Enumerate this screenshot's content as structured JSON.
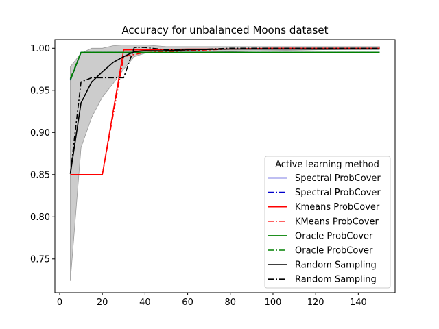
{
  "chart_data": {
    "type": "line",
    "title": "Accuracy for unbalanced Moons dataset",
    "xlabel": "",
    "ylabel": "",
    "xlim": [
      -2.25,
      157.25
    ],
    "ylim": [
      0.71,
      1.01
    ],
    "xticks": [
      0,
      20,
      40,
      60,
      80,
      100,
      120,
      140
    ],
    "yticks": [
      0.75,
      0.8,
      0.85,
      0.9,
      0.95,
      1.0
    ],
    "ytick_labels": [
      "0.75",
      "0.80",
      "0.85",
      "0.90",
      "0.95",
      "1.00"
    ],
    "legend": {
      "title": "Active learning method",
      "position": "lower-right"
    },
    "band": {
      "x": [
        5,
        10,
        15,
        20,
        25,
        30,
        35,
        40,
        45,
        50,
        60,
        80,
        100,
        120,
        150
      ],
      "lower": [
        0.724,
        0.882,
        0.918,
        0.942,
        0.958,
        0.975,
        0.99,
        0.994,
        0.995,
        0.995,
        0.995,
        0.996,
        0.997,
        0.998,
        0.999
      ],
      "upper": [
        0.978,
        0.994,
        1.0,
        1.0,
        1.003,
        1.004,
        1.004,
        1.004,
        1.003,
        1.002,
        1.002,
        1.002,
        1.002,
        1.002,
        1.002
      ]
    },
    "series": [
      {
        "name": "Spectral ProbCover",
        "color": "#0000cc",
        "dash": "solid",
        "x": [
          5,
          10,
          150
        ],
        "y": [
          0.962,
          0.995,
          0.995
        ]
      },
      {
        "name": "Spectral ProbCover",
        "color": "#0000cc",
        "dash": "dashdot",
        "x": [
          5,
          10,
          150
        ],
        "y": [
          0.963,
          0.995,
          0.995
        ]
      },
      {
        "name": "Kmeans ProbCover",
        "color": "#ff0000",
        "dash": "solid",
        "x": [
          5,
          10,
          20,
          30,
          40,
          60,
          80,
          100,
          150
        ],
        "y": [
          0.85,
          0.85,
          0.85,
          0.998,
          0.998,
          0.999,
          0.999,
          1.0,
          1.0
        ]
      },
      {
        "name": "KMeans ProbCover",
        "color": "#ff0000",
        "dash": "dashdot",
        "x": [
          5,
          10,
          20,
          30,
          40,
          60,
          80,
          100,
          150
        ],
        "y": [
          0.85,
          0.85,
          0.85,
          0.99,
          0.995,
          0.997,
          0.999,
          1.0,
          1.0
        ]
      },
      {
        "name": "Oracle ProbCover",
        "color": "#008000",
        "dash": "solid",
        "x": [
          5,
          10,
          150
        ],
        "y": [
          0.962,
          0.995,
          0.995
        ]
      },
      {
        "name": "Oracle ProbCover",
        "color": "#008000",
        "dash": "dashdot",
        "x": [
          5,
          10,
          150
        ],
        "y": [
          0.964,
          0.995,
          0.995
        ]
      },
      {
        "name": "Random Sampling",
        "color": "#000000",
        "dash": "solid",
        "x": [
          5,
          10,
          15,
          20,
          25,
          30,
          35,
          40,
          50,
          60,
          80,
          100,
          120,
          150
        ],
        "y": [
          0.851,
          0.935,
          0.96,
          0.972,
          0.983,
          0.99,
          0.996,
          0.997,
          0.997,
          0.998,
          0.999,
          0.999,
          0.999,
          0.999
        ]
      },
      {
        "name": "Random Sampling",
        "color": "#000000",
        "dash": "dashdot",
        "x": [
          5,
          10,
          15,
          20,
          25,
          30,
          35,
          40,
          50,
          60,
          80,
          100,
          150
        ],
        "y": [
          0.851,
          0.96,
          0.965,
          0.965,
          0.965,
          0.965,
          1.001,
          1.001,
          0.998,
          0.998,
          1.0,
          1.0,
          1.0
        ]
      }
    ]
  }
}
